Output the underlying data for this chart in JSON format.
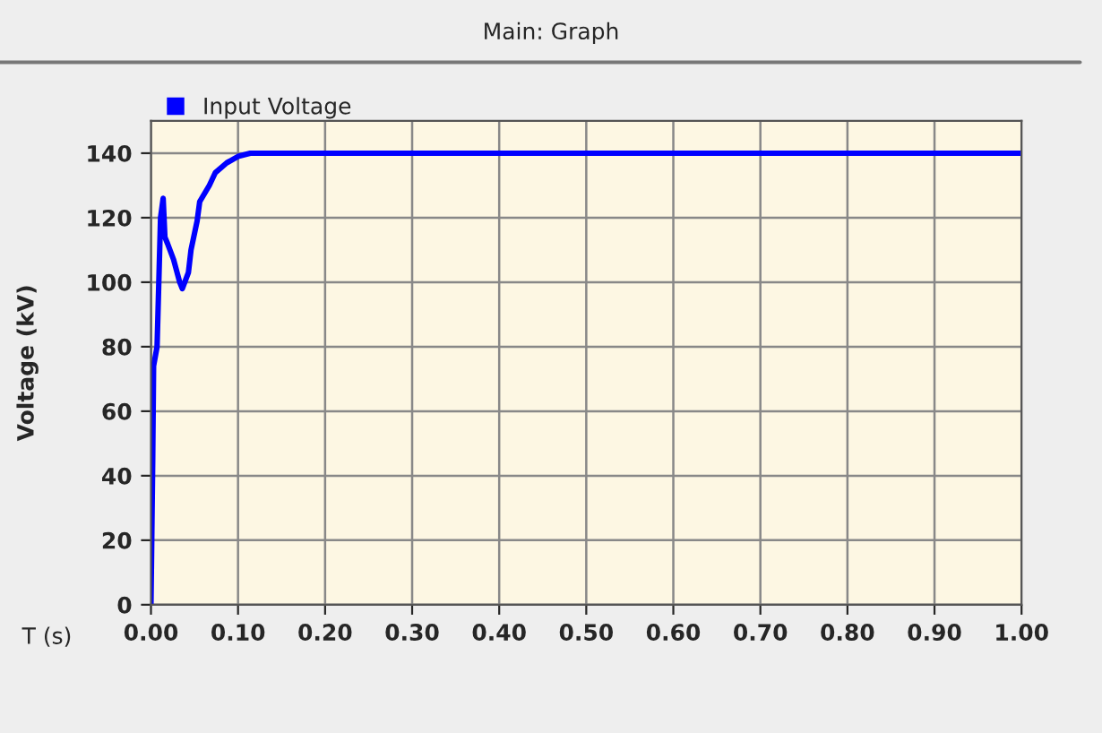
{
  "chart_data": {
    "type": "line",
    "title": "Main: Graph",
    "ylabel": "Voltage (kV)",
    "xlabel": "T (s)",
    "series": [
      {
        "name": "Input Voltage",
        "color": "#0000ff",
        "x": [
          0,
          0.002,
          0.003,
          0.007,
          0.011,
          0.014,
          0.016,
          0.019,
          0.026,
          0.033,
          0.036,
          0.043,
          0.046,
          0.053,
          0.056,
          0.067,
          0.074,
          0.087,
          0.1,
          0.114,
          0.15,
          0.2,
          0.3,
          0.4,
          0.5,
          0.6,
          0.7,
          0.8,
          0.9,
          1.0
        ],
        "values": [
          0,
          45,
          74,
          80,
          120,
          126,
          114,
          112,
          107,
          100,
          98,
          103,
          110,
          119,
          125,
          130,
          134,
          137,
          139,
          140,
          140,
          140,
          140,
          140,
          140,
          140,
          140,
          140,
          140,
          140
        ]
      }
    ],
    "xlim": [
      0,
      1
    ],
    "xticks": [
      {
        "value": 0,
        "label": "0.00"
      },
      {
        "value": 0.1,
        "label": "0.10"
      },
      {
        "value": 0.2,
        "label": "0.20"
      },
      {
        "value": 0.3,
        "label": "0.30"
      },
      {
        "value": 0.4,
        "label": "0.40"
      },
      {
        "value": 0.5,
        "label": "0.50"
      },
      {
        "value": 0.6,
        "label": "0.60"
      },
      {
        "value": 0.7,
        "label": "0.70"
      },
      {
        "value": 0.8,
        "label": "0.80"
      },
      {
        "value": 0.9,
        "label": "0.90"
      },
      {
        "value": 1.0,
        "label": "1.00"
      }
    ],
    "ylim": [
      0,
      150
    ],
    "yticks": [
      0,
      20,
      40,
      60,
      80,
      100,
      120,
      140
    ],
    "grid": true,
    "legend": "top left",
    "marker": "none",
    "line_style": "solid"
  }
}
